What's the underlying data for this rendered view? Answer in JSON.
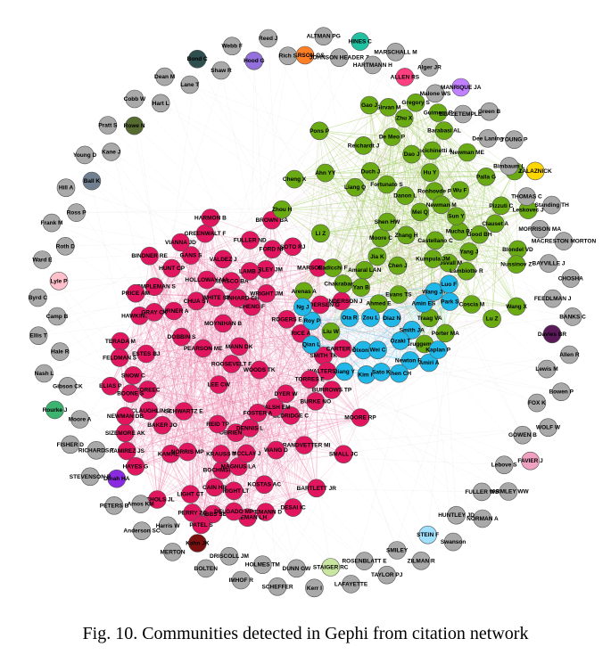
{
  "caption": "Fig. 10.  Communities detected in Gephi from citation network",
  "communities": {
    "red": {
      "color": "#e2165e",
      "edge_color": "#f07aa6"
    },
    "green": {
      "color": "#6aaa12",
      "edge_color": "#9ccc5a"
    },
    "cyan": {
      "color": "#1fb8e8",
      "edge_color": "#7fd6f2"
    },
    "grey": {
      "color": "#a9a9a9",
      "edge_color": "#cccccc"
    }
  },
  "labels": {
    "red": [
      "CHUA ST",
      "BINDNER RE",
      "GANS S",
      "DESAI IC",
      "GREENWALT F",
      "BLASCO BA",
      "CHENG F",
      "DOBBIN S",
      "WEMANN D",
      "MARSOE SOLL",
      "GRANDVETTER MI",
      "BOCHMSKI M",
      "HENDERSON J",
      "BAKER JO",
      "WANG D",
      "KAMAL J",
      "SMITH TK",
      "BERNHARD CH",
      "SIZEMORE AK",
      "WRIGHT JM",
      "TERADA M",
      "MOYNIHAN B",
      "PEARSON ME",
      "HOLLOWAY MA",
      "WHITE ST",
      "RAMIREZ JS",
      "LEE CW",
      "OBRIEN AM",
      "ROOSEVELT F",
      "SCHWARTZ E",
      "GARLEY JM",
      "TEMPLEMAN S",
      "BURROWS TP",
      "MCLAUGHLIN D",
      "ELIAS P",
      "KOSTAS AC",
      "ANDERSEN G",
      "FORD NR",
      "GIBBS SB",
      "WALTERS MA",
      "VIANNA JD",
      "HAWKINS JR",
      "SMALL JC",
      "ELDRIDGE C",
      "NEWMAN DB",
      "PERRY ZC",
      "COLEMAN LH",
      "TORRES E",
      "BROWN BA",
      "PRICE AM",
      "BRIGHT LT",
      "HUNT CP",
      "LIGHT CT",
      "NORRIS MP",
      "MAGNUS LA",
      "CARTER JD",
      "FELDMAN S",
      "KOREEC",
      "BARTLETT JR",
      "TURNER A",
      "WALSH EM",
      "FULLER ND",
      "RICE A",
      "NICHOLS JL",
      "MCCLAY J",
      "DELGADO MP",
      "CAIN HR",
      "VALDEZ J",
      "MANN DK",
      "ROGERS E",
      "BURKE NO",
      "HAYES G",
      "WOODS TK",
      "PATEL S",
      "HARMON B",
      "DENNIS L",
      "SOTO RJ",
      "FOSTER A",
      "SNOW C",
      "REID TP",
      "GRAY CK",
      "LAMB J",
      "MOORE RP",
      "BOONE S",
      "ESTES BJ",
      "KRAUSS T",
      "DYER W"
    ],
    "green": [
      "Newman ME",
      "Zhang H",
      "Wang X",
      "Barabasi AL",
      "Leskovec J",
      "Girvan M",
      "Fortunato S",
      "Lancichinetti A",
      "Reichardt J",
      "Palla G",
      "Blondel VD",
      "Rosvall M",
      "Clauset A",
      "Moore C",
      "Pons P",
      "Guimera R",
      "Amaral LAN",
      "Danon L",
      "Arenas A",
      "Duch J",
      "Kumpula JM",
      "Ahn YY",
      "Evans TS",
      "Lambiotte R",
      "Ronhovde P",
      "Nussinov Z",
      "Mucha PJ",
      "Porter MA",
      "Traag VA",
      "Bruggeman J",
      "Good BH",
      "Ahmed E",
      "Radicchi F",
      "Castellano C",
      "Newman M",
      "Zhou H",
      "Hu Y",
      "Yang J",
      "Xie J",
      "Liu W",
      "Chen J",
      "Li Z",
      "Shen HW",
      "Cheng X",
      "Gregory S",
      "Coscia M",
      "Pizzuti C",
      "Chakrabarti D",
      "Sun Y",
      "Lu Z",
      "Dao J",
      "Wu F",
      "De Meo P",
      "Zhu X",
      "Gao J",
      "Liang Q",
      "Jia K",
      "Mei Q",
      "Yan B"
    ],
    "cyan": [
      "Smith JA",
      "Jiang Y",
      "Amin ES",
      "Zou L",
      "Dixon K",
      "Newton RT",
      "Amiri A",
      "Kaplan P",
      "Wang JY",
      "Chen CH",
      "Kim H",
      "Luo F",
      "Ozaki T",
      "Wei C",
      "Park S",
      "Roy P",
      "Diaz N",
      "Qian L",
      "Ota R",
      "Sato K",
      "Ng J"
    ],
    "grey": [
      "PEARSON GS",
      "ALTMAN PG",
      "JOHNSON HEADER Z",
      "HINES C",
      "HARTMANN H",
      "MARSCHALL M",
      "ALLEN RS",
      "Alger JR",
      "Malone WS",
      "MANRIQUE JA",
      "BLAZETEMPLE T",
      "Green B",
      "Dee Laning",
      "YOUNG P",
      "Bimbaum L",
      "ZALAZNICK",
      "THOMAS C",
      "Standing TH",
      "MORRISON MA",
      "MACRESTON MORTON",
      "BAYVILLE J",
      "CHOSHA",
      "FEEDLMAN J",
      "BANKS C",
      "Davies BR",
      "Allen R",
      "Lewis M",
      "Bowen P",
      "FOX K",
      "WOLF W",
      "GOWEN B",
      "FAVIER J",
      "Lebove S",
      "PARMLEY WW",
      "FULLER WS",
      "NORMAN A",
      "HUNTLEY JD",
      "Swanson",
      "STEIN F",
      "ZILMAN R",
      "SMILEY",
      "TAYLOR PJ",
      "ROSENBLATT E",
      "LAFAYETTE",
      "STAIGER RC",
      "Kerr I",
      "DUNN GW",
      "SCHEFFER",
      "HOLMES TM",
      "IMHOF R",
      "DRISCOLL JM",
      "BOLTEN",
      "Kahn JK",
      "MERTON",
      "Harris W",
      "Anderson SC",
      "Amos KM",
      "PETERS B",
      "Dinah HA",
      "STEVENSON R",
      "RICHARDS T",
      "FISHER D",
      "Moore A",
      "Rourke J",
      "Gibson CK",
      "Nash L",
      "Hale R",
      "Ellis T",
      "Camp B",
      "Byrd C",
      "Lyle P",
      "Ward E",
      "Roth D",
      "Frank M",
      "Ross P",
      "Hill A",
      "Ball K",
      "Young D",
      "Kane J",
      "Pratt S",
      "Rowe N",
      "Cobb W",
      "Hart L",
      "Dean M",
      "Lane T",
      "Bond C",
      "Shaw R",
      "Webb F",
      "Hood G",
      "Reed J",
      "Rich S"
    ]
  }
}
